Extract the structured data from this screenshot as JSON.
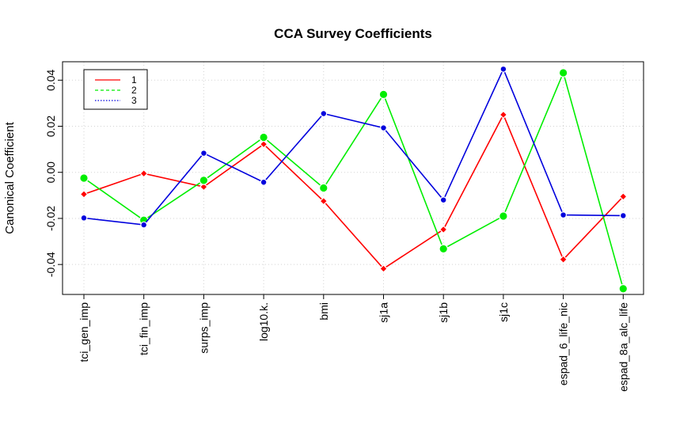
{
  "chart_data": {
    "type": "line",
    "title": "CCA Survey Coefficients",
    "ylabel": "Canonical Coefficient",
    "xlabel": "",
    "categories": [
      "tci_gen_imp",
      "tci_fin_imp",
      "surps_imp",
      "log10.k.",
      "bmi",
      "sj1a",
      "sj1b",
      "sj1c",
      "espad_6_life_nic",
      "espad_8a_alc_life"
    ],
    "ylim": [
      -0.053,
      0.048
    ],
    "yticks": [
      -0.04,
      -0.02,
      0.0,
      0.02,
      0.04
    ],
    "ytick_labels": [
      "-0.04",
      "-0.02",
      "0.00",
      "0.02",
      "0.04"
    ],
    "grid": true,
    "legend_position": "top-left",
    "series": [
      {
        "name": "1",
        "color": "#ff0000",
        "line_style": "solid",
        "marker": "diamond",
        "values": [
          -0.0095,
          -0.0005,
          -0.0063,
          0.0122,
          -0.0125,
          -0.0418,
          -0.0248,
          0.025,
          -0.0378,
          -0.0105
        ]
      },
      {
        "name": "2",
        "color": "#00ee00",
        "line_style": "dashed",
        "marker": "large-circle",
        "values": [
          -0.0025,
          -0.0208,
          -0.0035,
          0.0152,
          -0.0068,
          0.0338,
          -0.0332,
          -0.019,
          0.0432,
          -0.0505
        ]
      },
      {
        "name": "3",
        "color": "#0000dd",
        "line_style": "dotted",
        "marker": "circle",
        "values": [
          -0.0198,
          -0.0228,
          0.0083,
          -0.0043,
          0.0255,
          0.0193,
          -0.012,
          0.0448,
          -0.0185,
          -0.0188
        ]
      }
    ]
  }
}
